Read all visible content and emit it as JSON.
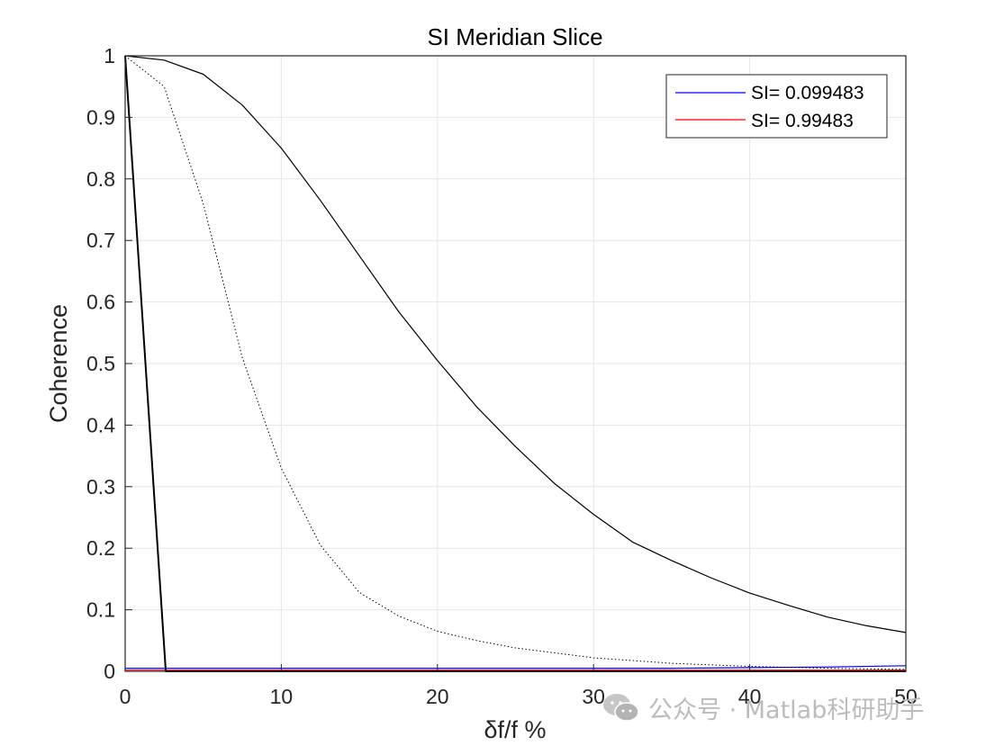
{
  "watermark": {
    "text": "公众号 · Matlab科研助手",
    "icon": "wechat-icon",
    "color": "#b9b9b9"
  },
  "chart_data": {
    "type": "line",
    "title": "SI Meridian Slice",
    "xlabel": "δf/f %",
    "ylabel": "Coherence",
    "xlim": [
      0,
      50
    ],
    "ylim": [
      0,
      1
    ],
    "xticks": [
      0,
      10,
      20,
      30,
      40,
      50
    ],
    "yticks": [
      0,
      0.1,
      0.2,
      0.3,
      0.4,
      0.5,
      0.6,
      0.7,
      0.8,
      0.9,
      1
    ],
    "grid": true,
    "legend": {
      "position": "top-right",
      "entries": [
        {
          "label": "SI= 0.099483",
          "color": "#0000ff"
        },
        {
          "label": "SI= 0.99483",
          "color": "#ff0000"
        }
      ]
    },
    "series": [
      {
        "color": "#0000ff",
        "width": 1.2,
        "x": [
          0,
          5,
          10,
          15,
          20,
          25,
          30,
          35,
          40,
          45,
          50
        ],
        "y": [
          0.005,
          0.005,
          0.005,
          0.005,
          0.005,
          0.005,
          0.005,
          0.005,
          0.006,
          0.007,
          0.009
        ]
      },
      {
        "color": "#ff0000",
        "width": 1.0,
        "x": [
          0,
          10,
          20,
          30,
          40,
          50
        ],
        "y": [
          0.002,
          0.002,
          0.002,
          0.002,
          0.002,
          0.002
        ]
      },
      {
        "color": "#000000",
        "width": 1.2,
        "x": [
          0,
          2.5,
          5,
          7.5,
          10,
          12.5,
          15,
          17.5,
          20,
          22.5,
          25,
          27.5,
          30,
          32.5,
          35,
          37.5,
          40,
          42.5,
          45,
          47.5,
          50
        ],
        "y": [
          1.0,
          0.993,
          0.97,
          0.92,
          0.85,
          0.765,
          0.675,
          0.585,
          0.505,
          0.43,
          0.365,
          0.305,
          0.255,
          0.21,
          0.18,
          0.152,
          0.127,
          0.107,
          0.088,
          0.074,
          0.063
        ]
      },
      {
        "color": "#000000",
        "width": 1.0,
        "dash": "1.5,2.5",
        "x": [
          0,
          2.5,
          5,
          7.5,
          10,
          12.5,
          15,
          17.5,
          20,
          22.5,
          25,
          30,
          35,
          40,
          45,
          50
        ],
        "y": [
          1.0,
          0.95,
          0.76,
          0.51,
          0.33,
          0.205,
          0.128,
          0.09,
          0.065,
          0.05,
          0.038,
          0.022,
          0.013,
          0.008,
          0.005,
          0.003
        ]
      },
      {
        "color": "#000000",
        "width": 2.0,
        "x": [
          0,
          2.6,
          2.7,
          50
        ],
        "y": [
          1.0,
          0.0,
          0.0,
          0.0
        ]
      }
    ]
  }
}
